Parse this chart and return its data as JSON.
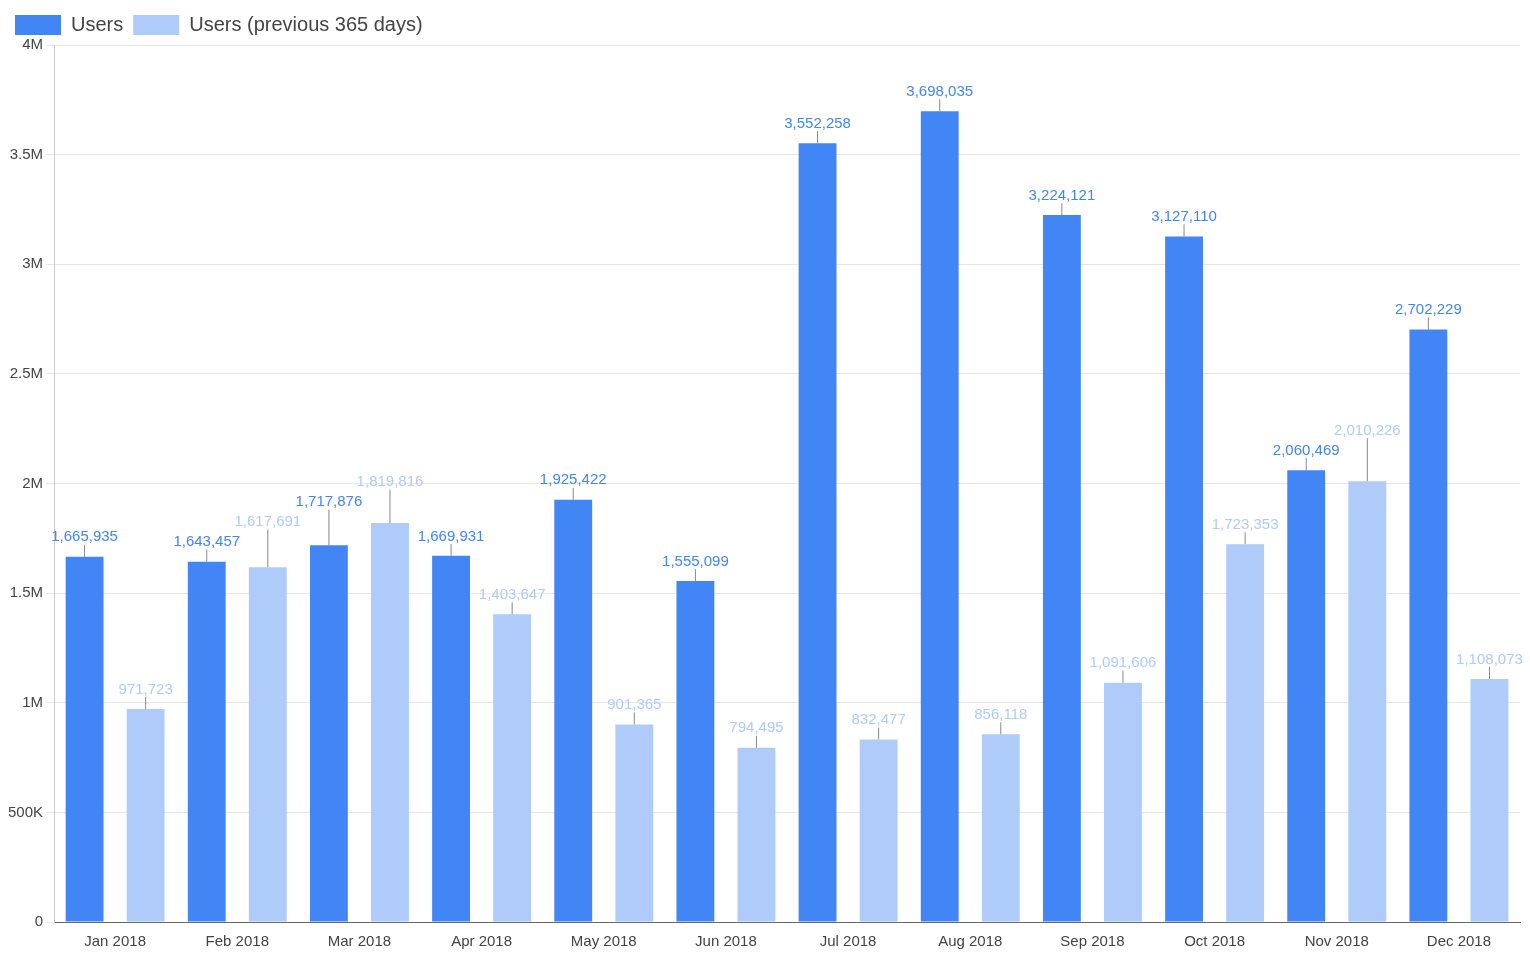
{
  "chart_data": {
    "type": "bar",
    "categories": [
      "Jan 2018",
      "Feb 2018",
      "Mar 2018",
      "Apr 2018",
      "May 2018",
      "Jun 2018",
      "Jul 2018",
      "Aug 2018",
      "Sep 2018",
      "Oct 2018",
      "Nov 2018",
      "Dec 2018"
    ],
    "series": [
      {
        "name": "Users",
        "color": "#4285f4",
        "values": [
          1665935,
          1643457,
          1717876,
          1669931,
          1925422,
          1555099,
          3552258,
          3698035,
          3224121,
          3127110,
          2060469,
          2702229
        ],
        "value_labels": [
          "1,665,935",
          "1,643,457",
          "1,717,876",
          "1,669,931",
          "1,925,422",
          "1,555,099",
          "3,552,258",
          "3,698,035",
          "3,224,121",
          "3,127,110",
          "2,060,469",
          "2,702,229"
        ]
      },
      {
        "name": "Users (previous 365 days)",
        "color": "#aecbfa",
        "values": [
          971723,
          1617691,
          1819816,
          1403647,
          901365,
          794495,
          832477,
          856118,
          1091606,
          1723353,
          2010226,
          1108073
        ],
        "value_labels": [
          "971,723",
          "1,617,691",
          "1,819,816",
          "1,403,647",
          "901,365",
          "794,495",
          "832,477",
          "856,118",
          "1,091,606",
          "1,723,353",
          "2,010,226",
          "1,108,073"
        ]
      }
    ],
    "ylim": [
      0,
      4000000
    ],
    "yticks": [
      0,
      {
        "value": 500000,
        "label": "500K"
      },
      {
        "value": 1000000,
        "label": "1M"
      },
      {
        "value": 1500000,
        "label": "1.5M"
      },
      {
        "value": 2000000,
        "label": "2M"
      },
      {
        "value": 2500000,
        "label": "2.5M"
      },
      {
        "value": 3000000,
        "label": "3M"
      },
      {
        "value": 3500000,
        "label": "3.5M"
      },
      {
        "value": 4000000,
        "label": "4M"
      }
    ],
    "grid": "y",
    "legend": "top left"
  }
}
